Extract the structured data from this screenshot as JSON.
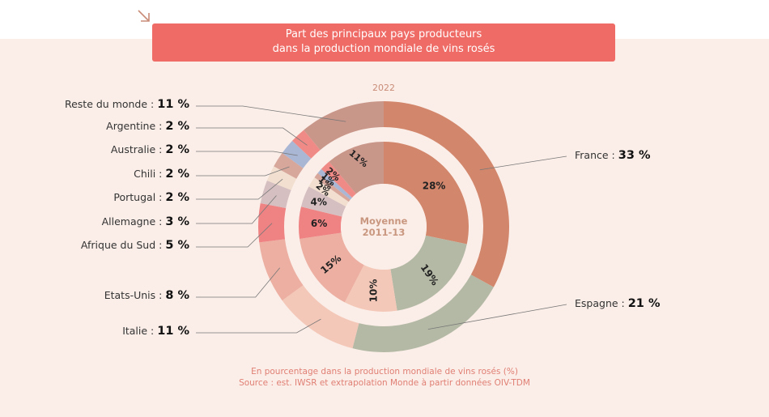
{
  "title": {
    "line1": "Part des principaux pays producteurs",
    "line2": "dans la production mondiale de vins rosés"
  },
  "icons": {
    "corner": "arrow-down-right-icon"
  },
  "colors": {
    "title_bg": "#ef6b66",
    "background": "#fbeee8",
    "accent_text": "#c9977f",
    "note_text": "#e07f74"
  },
  "outer_ring_label": "2022",
  "inner_ring_label": {
    "line1": "Moyenne",
    "line2": "2011-13"
  },
  "footer": {
    "line1": "En pourcentage dans la production mondiale de vins rosés (%)",
    "line2": "Source : est. IWSR et extrapolation Monde à partir données OIV-TDM"
  },
  "chart_data": {
    "type": "pie",
    "subtype": "nested-donut",
    "title": "Part des principaux pays producteurs dans la production mondiale de vins rosés",
    "unit": "%",
    "categories": [
      "France",
      "Espagne",
      "Italie",
      "Etats-Unis",
      "Afrique du Sud",
      "Allemagne",
      "Portugal",
      "Chili",
      "Australie",
      "Argentine",
      "Reste du monde"
    ],
    "colors": [
      "#d2876c",
      "#b4b9a5",
      "#f4c8b8",
      "#ecafa2",
      "#ef8384",
      "#d5bfc1",
      "#f2dfcf",
      "#d7a79c",
      "#a9b6d4",
      "#f08a86",
      "#c9968a"
    ],
    "series": [
      {
        "name": "2022",
        "ring": "outer",
        "values": [
          33,
          21,
          11,
          8,
          5,
          3,
          2,
          2,
          2,
          2,
          11
        ],
        "labels": [
          "France : ",
          "Espagne : ",
          "Italie : ",
          "Etats-Unis : ",
          "Afrique du Sud : ",
          "Allemagne : ",
          "Portugal : ",
          "Chili : ",
          "Australie : ",
          "Argentine : ",
          "Reste du monde : "
        ],
        "value_labels": [
          "33 %",
          "21 %",
          "11 %",
          "8 %",
          "5 %",
          "3 %",
          "2 %",
          "2 %",
          "2 %",
          "2 %",
          "11 %"
        ]
      },
      {
        "name": "Moyenne 2011-13",
        "ring": "inner",
        "values": [
          28,
          19,
          10,
          15,
          6,
          4,
          2,
          1,
          1,
          2,
          11
        ],
        "value_labels": [
          "28%",
          "19%",
          "10%",
          "15%",
          "6%",
          "4%",
          "2%",
          "1%",
          "1%",
          "2%",
          "11%"
        ]
      }
    ]
  }
}
